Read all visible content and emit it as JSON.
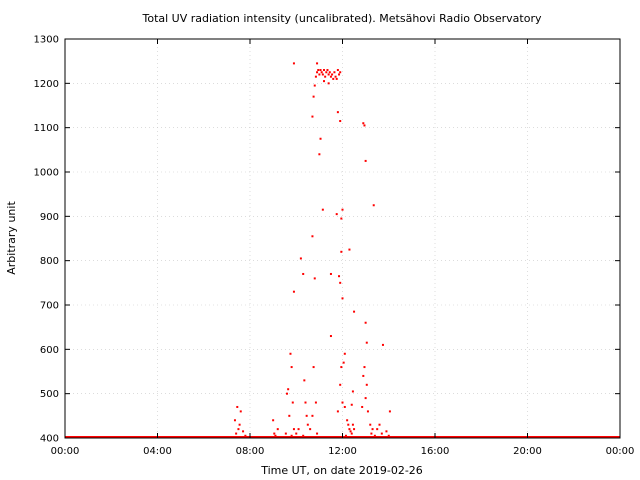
{
  "chart_data": {
    "type": "scatter",
    "title": "Total UV radiation intensity (uncalibrated). Metsähovi Radio Observatory",
    "xlabel": "Time UT, on date 2019-02-26",
    "ylabel": "Arbitrary unit",
    "x_unit": "hours UT",
    "xlim": [
      0,
      24
    ],
    "ylim": [
      400,
      1300
    ],
    "xticks": [
      0,
      4,
      8,
      12,
      16,
      20,
      24
    ],
    "xtick_labels": [
      "00:00",
      "04:00",
      "08:00",
      "12:00",
      "16:00",
      "20:00",
      "00:00"
    ],
    "yticks": [
      400,
      500,
      600,
      700,
      800,
      900,
      1000,
      1100,
      1200,
      1300
    ],
    "ytick_labels": [
      "400",
      "500",
      "600",
      "700",
      "800",
      "900",
      "1000",
      "1100",
      "1200",
      "1300"
    ],
    "grid": true,
    "marker_color": "#ff0000",
    "baseline": {
      "value": 400,
      "x_from": 0,
      "x_to": 24
    },
    "points": [
      [
        7.45,
        470
      ],
      [
        7.6,
        460
      ],
      [
        7.35,
        440
      ],
      [
        7.5,
        420
      ],
      [
        7.7,
        415
      ],
      [
        7.4,
        410
      ],
      [
        7.8,
        405
      ],
      [
        7.55,
        430
      ],
      [
        9.0,
        440
      ],
      [
        9.05,
        410
      ],
      [
        9.1,
        405
      ],
      [
        9.2,
        420
      ],
      [
        9.6,
        500
      ],
      [
        9.65,
        510
      ],
      [
        9.75,
        590
      ],
      [
        9.8,
        560
      ],
      [
        9.85,
        480
      ],
      [
        9.7,
        450
      ],
      [
        9.9,
        420
      ],
      [
        9.55,
        410
      ],
      [
        9.8,
        405
      ],
      [
        9.9,
        730
      ],
      [
        9.9,
        1245
      ],
      [
        10.2,
        805
      ],
      [
        10.3,
        770
      ],
      [
        10.35,
        530
      ],
      [
        10.4,
        480
      ],
      [
        10.45,
        450
      ],
      [
        10.1,
        420
      ],
      [
        10.0,
        410
      ],
      [
        10.3,
        405
      ],
      [
        10.5,
        430
      ],
      [
        10.7,
        855
      ],
      [
        10.8,
        760
      ],
      [
        10.75,
        560
      ],
      [
        10.85,
        480
      ],
      [
        10.7,
        450
      ],
      [
        10.6,
        420
      ],
      [
        10.9,
        410
      ],
      [
        10.75,
        1170
      ],
      [
        10.8,
        1195
      ],
      [
        10.85,
        1215
      ],
      [
        10.9,
        1225
      ],
      [
        10.95,
        1230
      ],
      [
        11.0,
        1220
      ],
      [
        11.05,
        1230
      ],
      [
        11.1,
        1225
      ],
      [
        11.15,
        1220
      ],
      [
        11.2,
        1230
      ],
      [
        11.25,
        1215
      ],
      [
        11.3,
        1225
      ],
      [
        11.35,
        1230
      ],
      [
        11.4,
        1220
      ],
      [
        11.45,
        1225
      ],
      [
        11.5,
        1215
      ],
      [
        11.55,
        1220
      ],
      [
        11.6,
        1210
      ],
      [
        11.65,
        1225
      ],
      [
        11.7,
        1215
      ],
      [
        11.75,
        1210
      ],
      [
        11.8,
        1230
      ],
      [
        11.85,
        1220
      ],
      [
        11.9,
        1225
      ],
      [
        10.9,
        1245
      ],
      [
        11.2,
        1205
      ],
      [
        11.4,
        1200
      ],
      [
        10.7,
        1125
      ],
      [
        11.05,
        1075
      ],
      [
        11.0,
        1040
      ],
      [
        11.15,
        915
      ],
      [
        11.8,
        1135
      ],
      [
        11.9,
        1115
      ],
      [
        11.75,
        905
      ],
      [
        11.95,
        895
      ],
      [
        12.0,
        915
      ],
      [
        11.95,
        820
      ],
      [
        11.85,
        765
      ],
      [
        11.9,
        750
      ],
      [
        12.0,
        715
      ],
      [
        11.5,
        770
      ],
      [
        11.5,
        630
      ],
      [
        11.95,
        560
      ],
      [
        12.05,
        570
      ],
      [
        12.1,
        590
      ],
      [
        12.0,
        480
      ],
      [
        11.9,
        520
      ],
      [
        12.1,
        470
      ],
      [
        11.8,
        460
      ],
      [
        12.2,
        440
      ],
      [
        12.25,
        430
      ],
      [
        12.3,
        420
      ],
      [
        12.35,
        415
      ],
      [
        12.4,
        410
      ],
      [
        12.15,
        405
      ],
      [
        12.5,
        420
      ],
      [
        12.45,
        430
      ],
      [
        12.3,
        825
      ],
      [
        12.5,
        685
      ],
      [
        12.45,
        505
      ],
      [
        12.4,
        475
      ],
      [
        12.9,
        1110
      ],
      [
        12.95,
        1105
      ],
      [
        13.0,
        1025
      ],
      [
        13.35,
        925
      ],
      [
        13.0,
        660
      ],
      [
        13.05,
        615
      ],
      [
        12.95,
        560
      ],
      [
        12.9,
        540
      ],
      [
        13.05,
        520
      ],
      [
        13.0,
        490
      ],
      [
        12.85,
        470
      ],
      [
        13.1,
        460
      ],
      [
        13.2,
        430
      ],
      [
        13.3,
        420
      ],
      [
        13.25,
        410
      ],
      [
        13.4,
        405
      ],
      [
        13.5,
        420
      ],
      [
        13.6,
        430
      ],
      [
        13.7,
        410
      ],
      [
        13.75,
        610
      ],
      [
        13.9,
        415
      ],
      [
        14.0,
        405
      ],
      [
        14.05,
        460
      ]
    ]
  }
}
